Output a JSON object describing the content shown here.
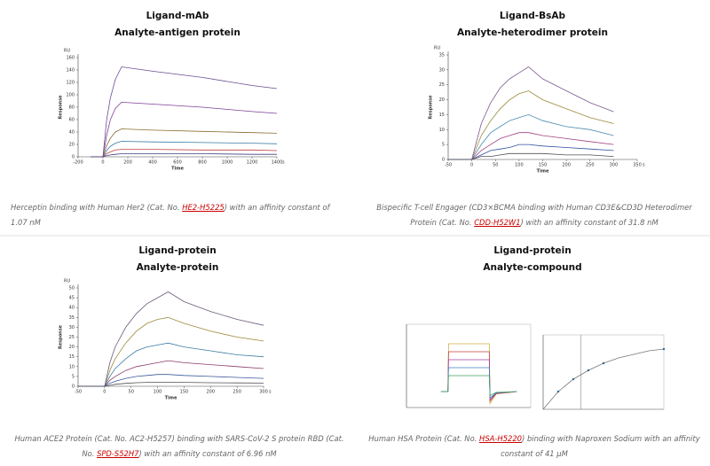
{
  "panels": [
    {
      "title": [
        "Ligand-mAb",
        "Analyte-antigen protein"
      ],
      "caption": {
        "before": "Herceptin binding with Human Her2 (Cat. No. ",
        "link": "HE2-H5225",
        "after": ") with an affinity constant of 1.07 nM"
      }
    },
    {
      "title": [
        "Ligand-BsAb",
        "Analyte-heterodimer protein"
      ],
      "caption": {
        "before": "Bispecific T-cell Engager (CD3×BCMA binding with Human CD3E&CD3D Heterodimer Protein (Cat. No. ",
        "link": "CDD-H52W1",
        "after": ") with an affinity constant of 31.8 nM"
      }
    },
    {
      "title": [
        "Ligand-protein",
        "Analyte-protein"
      ],
      "caption": {
        "before": "Human ACE2 Protein (Cat. No. AC2-H5257) binding with SARS-CoV-2 S protein RBD (Cat. No. ",
        "link": "SPD-S52H7",
        "after": ") with an affinity constant of 6.96 nM"
      }
    },
    {
      "title": [
        "Ligand-protein",
        "Analyte-compound"
      ],
      "caption": {
        "before": "Human HSA Protein (Cat. No. ",
        "link": "HSA-H5220",
        "after": ") binding with Naproxen Sodium with an affinity constant of 41 μM"
      }
    }
  ],
  "chart_data": [
    {
      "type": "line",
      "xlabel": "Time",
      "x_unit": "s",
      "ylabel": "Response",
      "y_unit": "RU",
      "xlim": [
        -200,
        1400
      ],
      "ylim": [
        0,
        160
      ],
      "xticks": [
        -200,
        0,
        200,
        400,
        600,
        800,
        1000,
        1200,
        1400
      ],
      "yticks": [
        0,
        20,
        40,
        60,
        80,
        100,
        120,
        140,
        160
      ],
      "x": [
        -100,
        0,
        30,
        60,
        100,
        150,
        400,
        800,
        1200,
        1400
      ],
      "series": [
        {
          "color": "#6a4c93",
          "values": [
            0,
            0,
            60,
            95,
            125,
            145,
            138,
            128,
            115,
            110
          ]
        },
        {
          "color": "#7f3f98",
          "values": [
            0,
            0,
            35,
            60,
            78,
            88,
            85,
            80,
            73,
            70
          ]
        },
        {
          "color": "#8a6d2f",
          "values": [
            0,
            0,
            18,
            30,
            40,
            45,
            43,
            41,
            39,
            38
          ]
        },
        {
          "color": "#3a7ca5",
          "values": [
            0,
            0,
            10,
            17,
            22,
            25,
            24,
            23,
            22,
            21
          ]
        },
        {
          "color": "#c04040",
          "values": [
            0,
            0,
            5,
            8,
            11,
            12,
            12,
            11,
            11,
            10
          ]
        },
        {
          "color": "#404080",
          "values": [
            0,
            0,
            2,
            3,
            4,
            5,
            5,
            5,
            4,
            4
          ]
        }
      ]
    },
    {
      "type": "line",
      "xlabel": "Time",
      "x_unit": "s",
      "ylabel": "Response",
      "y_unit": "RU",
      "xlim": [
        -50,
        350
      ],
      "ylim": [
        0,
        35
      ],
      "xticks": [
        -50,
        0,
        50,
        100,
        150,
        200,
        250,
        300,
        350
      ],
      "yticks": [
        0,
        5,
        10,
        15,
        20,
        25,
        30,
        35
      ],
      "x": [
        -50,
        0,
        20,
        40,
        60,
        80,
        100,
        120,
        150,
        200,
        250,
        300
      ],
      "series": [
        {
          "color": "#7a5a8c",
          "values": [
            0,
            0,
            12,
            19,
            24,
            27,
            29,
            31,
            27,
            23,
            19,
            16
          ]
        },
        {
          "color": "#9a8a3a",
          "values": [
            0,
            0,
            8,
            13,
            17,
            20,
            22,
            23,
            20,
            17,
            14,
            12
          ]
        },
        {
          "color": "#4a8ab0",
          "values": [
            0,
            0,
            5,
            9,
            11,
            13,
            14,
            15,
            13,
            11,
            10,
            8
          ]
        },
        {
          "color": "#a04080",
          "values": [
            0,
            0,
            3,
            5,
            7,
            8,
            9,
            9,
            8,
            7,
            6,
            5
          ]
        },
        {
          "color": "#3050a0",
          "values": [
            0,
            0,
            1.5,
            3,
            3.5,
            4,
            5,
            5,
            4.5,
            4,
            3.5,
            3
          ]
        },
        {
          "color": "#505050",
          "values": [
            0,
            0,
            1,
            1,
            1.5,
            2,
            2,
            2,
            2,
            1.5,
            1.5,
            1
          ]
        }
      ]
    },
    {
      "type": "line",
      "xlabel": "Time",
      "x_unit": "s",
      "ylabel": "Response",
      "y_unit": "RU",
      "xlim": [
        -50,
        300
      ],
      "ylim": [
        0,
        50
      ],
      "xticks": [
        -50,
        0,
        50,
        100,
        150,
        200,
        250,
        300
      ],
      "yticks": [
        0,
        5,
        10,
        15,
        20,
        25,
        30,
        35,
        40,
        45,
        50
      ],
      "x": [
        -50,
        0,
        10,
        20,
        40,
        60,
        80,
        100,
        120,
        150,
        200,
        250,
        300
      ],
      "series": [
        {
          "color": "#6a5a7a",
          "values": [
            0,
            0,
            12,
            20,
            30,
            37,
            42,
            45,
            48,
            43,
            38,
            34,
            31
          ]
        },
        {
          "color": "#9a8a3a",
          "values": [
            0,
            0,
            8,
            14,
            22,
            28,
            32,
            34,
            35,
            32,
            28,
            25,
            23
          ]
        },
        {
          "color": "#3a7ca5",
          "values": [
            0,
            0,
            5,
            9,
            14,
            18,
            20,
            21,
            22,
            20,
            18,
            16,
            15
          ]
        },
        {
          "color": "#8a3a6a",
          "values": [
            0,
            0,
            3,
            5,
            8,
            10,
            11,
            12,
            13,
            12,
            11,
            10,
            9
          ]
        },
        {
          "color": "#3a5a9a",
          "values": [
            0,
            0,
            1.5,
            2.5,
            4,
            5,
            5.5,
            6,
            6,
            5.5,
            5,
            4.5,
            4
          ]
        },
        {
          "color": "#505050",
          "values": [
            0,
            0,
            0.5,
            1,
            1.5,
            1.8,
            2,
            2,
            2,
            2,
            1.8,
            1.7,
            1.6
          ]
        }
      ]
    },
    {
      "type": "line",
      "xlim": [
        -60,
        120
      ],
      "ylim": [
        -10,
        40
      ],
      "x": [
        -10,
        0,
        1,
        60,
        61,
        70,
        100
      ],
      "series": [
        {
          "color": "#d0b040",
          "values": [
            0,
            0,
            30,
            30,
            -7.5,
            -1.5,
            0
          ]
        },
        {
          "color": "#c04040",
          "values": [
            0,
            0,
            25,
            25,
            -6,
            -1.2,
            0
          ]
        },
        {
          "color": "#a040a0",
          "values": [
            0,
            0,
            20,
            20,
            -5,
            -1,
            0
          ]
        },
        {
          "color": "#4080c0",
          "values": [
            0,
            0,
            15,
            15,
            -4,
            -0.8,
            0
          ]
        },
        {
          "color": "#40a060",
          "values": [
            0,
            0,
            10,
            10,
            -2.5,
            -0.5,
            0
          ]
        }
      ]
    },
    {
      "type": "line",
      "xlim": [
        0,
        800
      ],
      "ylim": [
        0,
        40
      ],
      "vline": 250,
      "x": [
        0,
        100,
        200,
        300,
        400,
        500,
        600,
        700,
        800
      ],
      "series": [
        {
          "color": "#777777",
          "values": [
            0,
            10,
            17,
            22,
            26,
            29,
            31,
            33,
            34
          ]
        },
        {
          "color": "#2a6a9a",
          "mode": "markers",
          "values": [
            null,
            10,
            17,
            22,
            26,
            null,
            null,
            null,
            34
          ]
        }
      ]
    }
  ]
}
